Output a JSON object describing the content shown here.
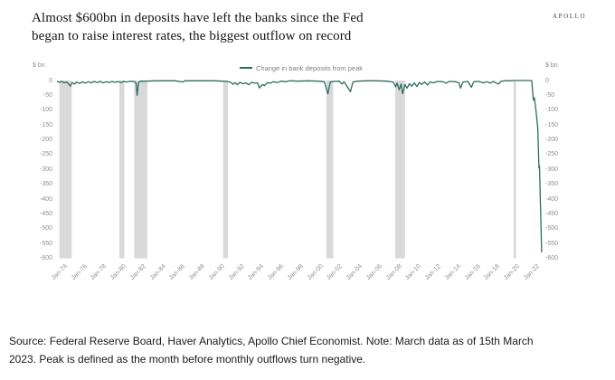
{
  "header": {
    "title_lines": [
      "Almost $600bn in deposits have left the banks since the Fed",
      "began to raise interest rates, the biggest outflow on record"
    ],
    "logo": "APOLLO"
  },
  "chart_data": {
    "type": "line",
    "title": "Almost $600bn in deposits have left the banks since the Fed began to raise interest rates, the biggest outflow on record",
    "legend_label": "Change in bank deposits from peak",
    "legend_position": "top-center",
    "y_unit": "$ bn",
    "grid": false,
    "line_color": "#2d6e5f",
    "recession_band_color": "#d9d9d9",
    "tick_color": "#8f8f8f",
    "ylim": [
      -600,
      0
    ],
    "xlim": [
      1974,
      2023.4
    ],
    "y_ticks": [
      "0",
      "-50",
      "-100",
      "-150",
      "-200",
      "-250",
      "-300",
      "-350",
      "-400",
      "-450",
      "-500",
      "-550",
      "-600"
    ],
    "x_ticks": [
      "Jan-74",
      "Jan-76",
      "Jan-78",
      "Jan-80",
      "Jan-82",
      "Jan-84",
      "Jan-86",
      "Jan-88",
      "Jan-90",
      "Jan-92",
      "Jan-94",
      "Jan-96",
      "Jan-98",
      "Jan-00",
      "Jan-02",
      "Jan-04",
      "Jan-06",
      "Jan-08",
      "Jan-10",
      "Jan-12",
      "Jan-14",
      "Jan-16",
      "Jan-18",
      "Jan-20",
      "Jan-22"
    ],
    "x_tick_years": [
      1974,
      1976,
      1978,
      1980,
      1982,
      1984,
      1986,
      1988,
      1990,
      1992,
      1994,
      1996,
      1998,
      2000,
      2002,
      2004,
      2006,
      2008,
      2010,
      2012,
      2014,
      2016,
      2018,
      2020,
      2022
    ],
    "recessions": [
      [
        1974.25,
        1975.5
      ],
      [
        1980.35,
        1980.85
      ],
      [
        1981.85,
        1983.2
      ],
      [
        1990.9,
        1991.4
      ],
      [
        2001.4,
        2002.1
      ],
      [
        2008.4,
        2009.4
      ],
      [
        2020.45,
        2020.7
      ]
    ],
    "series": [
      {
        "name": "Change in bank deposits from peak",
        "points": [
          [
            1974.0,
            -2
          ],
          [
            1974.25,
            -6
          ],
          [
            1974.5,
            -3
          ],
          [
            1974.75,
            -8
          ],
          [
            1975.0,
            -5
          ],
          [
            1975.35,
            -19
          ],
          [
            1975.55,
            -7
          ],
          [
            1975.8,
            -12
          ],
          [
            1976.0,
            -5
          ],
          [
            1976.3,
            -10
          ],
          [
            1976.6,
            -4
          ],
          [
            1976.9,
            -9
          ],
          [
            1977.2,
            -4
          ],
          [
            1977.5,
            -8
          ],
          [
            1977.8,
            -3
          ],
          [
            1978.1,
            -7
          ],
          [
            1978.4,
            -3
          ],
          [
            1978.7,
            -8
          ],
          [
            1979.0,
            -4
          ],
          [
            1979.3,
            -7
          ],
          [
            1979.6,
            -3
          ],
          [
            1979.9,
            -6
          ],
          [
            1980.2,
            -3
          ],
          [
            1980.5,
            -7
          ],
          [
            1980.8,
            -3
          ],
          [
            1981.1,
            -5
          ],
          [
            1981.5,
            -2
          ],
          [
            1981.9,
            -4
          ],
          [
            1982.05,
            -10
          ],
          [
            1982.15,
            -50
          ],
          [
            1982.3,
            -6
          ],
          [
            1982.5,
            -2
          ],
          [
            1983.0,
            -2
          ],
          [
            1984.0,
            -1
          ],
          [
            1985.0,
            -1
          ],
          [
            1986.0,
            -1
          ],
          [
            1986.85,
            -5
          ],
          [
            1987.0,
            -1
          ],
          [
            1988.0,
            -1
          ],
          [
            1989.0,
            -1
          ],
          [
            1990.0,
            -1
          ],
          [
            1990.8,
            -2
          ],
          [
            1991.3,
            -3
          ],
          [
            1991.7,
            -6
          ],
          [
            1991.9,
            -13
          ],
          [
            1992.1,
            -7
          ],
          [
            1992.35,
            -14
          ],
          [
            1992.6,
            -6
          ],
          [
            1992.9,
            -11
          ],
          [
            1993.2,
            -8
          ],
          [
            1993.5,
            -14
          ],
          [
            1993.8,
            -6
          ],
          [
            1994.1,
            -9
          ],
          [
            1994.4,
            -8
          ],
          [
            1994.6,
            -25
          ],
          [
            1994.9,
            -13
          ],
          [
            1995.1,
            -17
          ],
          [
            1995.4,
            -7
          ],
          [
            1995.7,
            -9
          ],
          [
            1996.0,
            -4
          ],
          [
            1996.4,
            -7
          ],
          [
            1996.8,
            -2
          ],
          [
            1997.3,
            -4
          ],
          [
            1997.7,
            -1
          ],
          [
            1998.5,
            -2
          ],
          [
            1999.5,
            -1
          ],
          [
            2000.5,
            -2
          ],
          [
            2001.2,
            -4
          ],
          [
            2001.55,
            -45
          ],
          [
            2001.8,
            -5
          ],
          [
            2002.2,
            -3
          ],
          [
            2002.7,
            -2
          ],
          [
            2003.0,
            -12
          ],
          [
            2003.2,
            -4
          ],
          [
            2003.85,
            -38
          ],
          [
            2004.1,
            -5
          ],
          [
            2004.6,
            -2
          ],
          [
            2005.5,
            -1
          ],
          [
            2006.5,
            -1
          ],
          [
            2007.5,
            -2
          ],
          [
            2008.2,
            -5
          ],
          [
            2008.45,
            -21
          ],
          [
            2008.6,
            -9
          ],
          [
            2008.8,
            -31
          ],
          [
            2009.0,
            -12
          ],
          [
            2009.15,
            -45
          ],
          [
            2009.4,
            -13
          ],
          [
            2009.6,
            -26
          ],
          [
            2009.85,
            -11
          ],
          [
            2010.1,
            -19
          ],
          [
            2010.35,
            -8
          ],
          [
            2010.6,
            -20
          ],
          [
            2010.85,
            -7
          ],
          [
            2011.1,
            -13
          ],
          [
            2011.4,
            -5
          ],
          [
            2011.7,
            -15
          ],
          [
            2011.95,
            -5
          ],
          [
            2012.3,
            -8
          ],
          [
            2012.7,
            -3
          ],
          [
            2013.2,
            -4
          ],
          [
            2013.6,
            -9
          ],
          [
            2013.9,
            -3
          ],
          [
            2014.5,
            -4
          ],
          [
            2014.9,
            -8
          ],
          [
            2015.05,
            -26
          ],
          [
            2015.3,
            -5
          ],
          [
            2015.8,
            -3
          ],
          [
            2016.15,
            -23
          ],
          [
            2016.4,
            -4
          ],
          [
            2016.9,
            -3
          ],
          [
            2017.4,
            -8
          ],
          [
            2017.7,
            -4
          ],
          [
            2018.1,
            -9
          ],
          [
            2018.35,
            -3
          ],
          [
            2018.9,
            -12
          ],
          [
            2019.15,
            -3
          ],
          [
            2019.5,
            -1
          ],
          [
            2020.0,
            -1
          ],
          [
            2020.5,
            0
          ],
          [
            2021.0,
            0
          ],
          [
            2021.5,
            0
          ],
          [
            2022.0,
            0
          ],
          [
            2022.3,
            -1
          ],
          [
            2022.45,
            -66
          ],
          [
            2022.55,
            -58
          ],
          [
            2022.7,
            -95
          ],
          [
            2022.9,
            -160
          ],
          [
            2023.02,
            -295
          ],
          [
            2023.08,
            -288
          ],
          [
            2023.3,
            -580
          ]
        ]
      }
    ]
  },
  "footer": {
    "source": "Source: Federal Reserve Board, Haver Analytics, Apollo Chief Economist. Note: March data as of 15th March 2023. Peak is defined as the month before monthly outflows turn negative."
  }
}
